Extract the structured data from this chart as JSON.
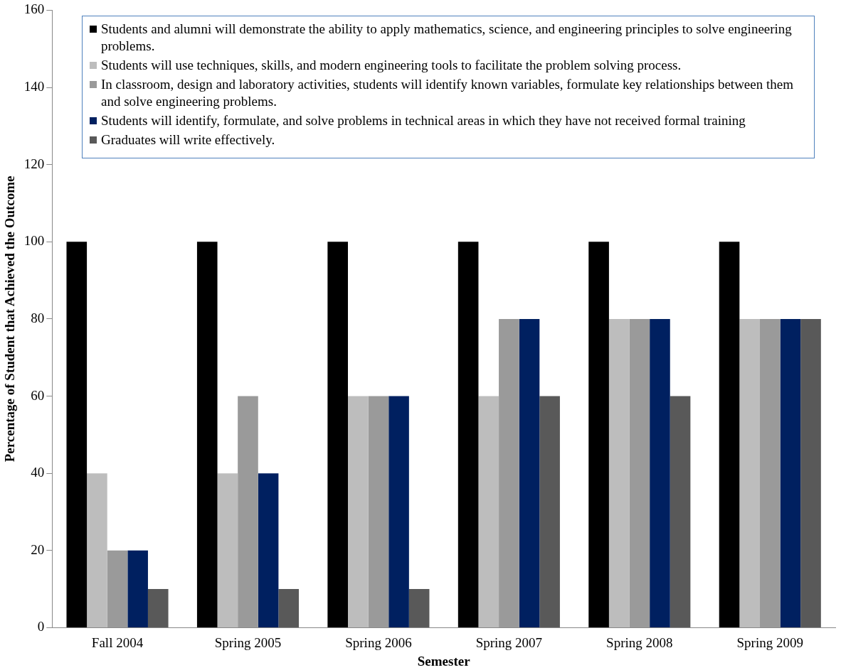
{
  "chart_data": {
    "type": "bar",
    "xlabel": "Semester",
    "ylabel": "Percentage of Student that Achieved the Outcome",
    "categories": [
      "Fall 2004",
      "Spring 2005",
      "Spring 2006",
      "Spring 2007",
      "Spring 2008",
      "Spring 2009"
    ],
    "series": [
      {
        "name": "Students and alumni will demonstrate the ability to apply mathematics, science, and engineering principles to solve engineering problems.",
        "color": "#000000",
        "values": [
          100,
          100,
          100,
          100,
          100,
          100
        ]
      },
      {
        "name": "Students will use techniques, skills, and modern engineering tools to facilitate the problem solving process.",
        "color": "#bdbdbd",
        "values": [
          40,
          40,
          60,
          60,
          80,
          80
        ]
      },
      {
        "name": "In classroom, design and laboratory activities, students will identify known variables, formulate key relationships between them and solve engineering problems.",
        "color": "#9a9a9a",
        "values": [
          20,
          60,
          60,
          80,
          80,
          80
        ]
      },
      {
        "name": "Students will identify, formulate, and solve problems in technical areas in which they have not received formal training",
        "color": "#002060",
        "values": [
          20,
          40,
          60,
          80,
          80,
          80
        ]
      },
      {
        "name": "Graduates will write effectively.",
        "color": "#595959",
        "values": [
          10,
          10,
          10,
          60,
          60,
          80
        ]
      }
    ],
    "ylim": [
      0,
      160
    ],
    "yticks": [
      0,
      20,
      40,
      60,
      80,
      100,
      120,
      140,
      160
    ],
    "grid": false,
    "legend": "top"
  }
}
